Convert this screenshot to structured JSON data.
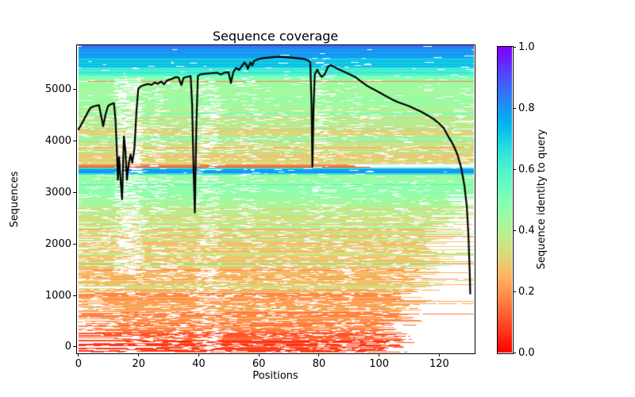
{
  "chart_data": {
    "type": "heatmap+line",
    "title": "Sequence coverage",
    "xlabel": "Positions",
    "ylabel": "Sequences",
    "grid": false,
    "n_positions": 132,
    "n_sequences": 5864,
    "xlim": [
      -0.5,
      131.5
    ],
    "ylim": [
      -110,
      5864
    ],
    "x_ticks": [
      "0",
      "20",
      "40",
      "60",
      "80",
      "100",
      "120"
    ],
    "x_tick_values": [
      0,
      20,
      40,
      60,
      80,
      100,
      120
    ],
    "y_ticks": [
      "0",
      "1000",
      "2000",
      "3000",
      "4000",
      "5000"
    ],
    "y_tick_values": [
      0,
      1000,
      2000,
      3000,
      4000,
      5000
    ],
    "line_color": "#000000",
    "line_width": 2.2,
    "line_meaning": "number of sequences covering each alignment position",
    "coverage_line": {
      "points": [
        [
          0,
          4230
        ],
        [
          1,
          4330
        ],
        [
          2,
          4440
        ],
        [
          3,
          4550
        ],
        [
          4,
          4650
        ],
        [
          5,
          4675
        ],
        [
          6,
          4690
        ],
        [
          6.8,
          4700
        ],
        [
          7.3,
          4560
        ],
        [
          8.2,
          4290
        ],
        [
          9,
          4520
        ],
        [
          9.8,
          4680
        ],
        [
          10.5,
          4710
        ],
        [
          11.8,
          4740
        ],
        [
          12.3,
          4420
        ],
        [
          12.8,
          3760
        ],
        [
          13.1,
          3250
        ],
        [
          13.5,
          3690
        ],
        [
          14.1,
          3160
        ],
        [
          14.5,
          2870
        ],
        [
          15.1,
          4090
        ],
        [
          15.6,
          3820
        ],
        [
          16.1,
          3250
        ],
        [
          16.7,
          3560
        ],
        [
          17.3,
          3740
        ],
        [
          17.9,
          3580
        ],
        [
          18.6,
          3850
        ],
        [
          19.3,
          4600
        ],
        [
          19.9,
          5020
        ],
        [
          20.6,
          5060
        ],
        [
          21.5,
          5085
        ],
        [
          23,
          5110
        ],
        [
          24.3,
          5095
        ],
        [
          25.4,
          5140
        ],
        [
          26.4,
          5115
        ],
        [
          27.5,
          5160
        ],
        [
          28.4,
          5105
        ],
        [
          29.5,
          5180
        ],
        [
          31,
          5210
        ],
        [
          32.4,
          5245
        ],
        [
          33.3,
          5235
        ],
        [
          34.2,
          5090
        ],
        [
          35,
          5235
        ],
        [
          36.2,
          5250
        ],
        [
          37.3,
          5265
        ],
        [
          37.8,
          4700
        ],
        [
          38.3,
          3400
        ],
        [
          38.7,
          2610
        ],
        [
          39.2,
          4300
        ],
        [
          39.7,
          5265
        ],
        [
          40.5,
          5300
        ],
        [
          42,
          5310
        ],
        [
          44,
          5320
        ],
        [
          46,
          5330
        ],
        [
          47.4,
          5295
        ],
        [
          48.4,
          5330
        ],
        [
          49.9,
          5340
        ],
        [
          50.7,
          5130
        ],
        [
          51.5,
          5345
        ],
        [
          52.4,
          5420
        ],
        [
          53.4,
          5385
        ],
        [
          54.4,
          5465
        ],
        [
          55.2,
          5530
        ],
        [
          55.9,
          5480
        ],
        [
          56.3,
          5405
        ],
        [
          57.2,
          5530
        ],
        [
          57.8,
          5470
        ],
        [
          58.3,
          5555
        ],
        [
          59.5,
          5590
        ],
        [
          61,
          5610
        ],
        [
          63,
          5622
        ],
        [
          65,
          5633
        ],
        [
          67,
          5640
        ],
        [
          69,
          5632
        ],
        [
          71,
          5622
        ],
        [
          73,
          5612
        ],
        [
          75,
          5598
        ],
        [
          76.3,
          5572
        ],
        [
          77.1,
          5535
        ],
        [
          77.5,
          4700
        ],
        [
          77.8,
          3505
        ],
        [
          78.2,
          4700
        ],
        [
          78.6,
          5300
        ],
        [
          79.4,
          5390
        ],
        [
          80.1,
          5310
        ],
        [
          80.9,
          5250
        ],
        [
          81.9,
          5300
        ],
        [
          83,
          5450
        ],
        [
          84,
          5480
        ],
        [
          85,
          5445
        ],
        [
          86.4,
          5400
        ],
        [
          88,
          5360
        ],
        [
          90,
          5305
        ],
        [
          92,
          5248
        ],
        [
          94,
          5160
        ],
        [
          96,
          5075
        ],
        [
          98,
          5012
        ],
        [
          100,
          4950
        ],
        [
          102,
          4885
        ],
        [
          104,
          4820
        ],
        [
          106,
          4765
        ],
        [
          108,
          4722
        ],
        [
          110,
          4680
        ],
        [
          112,
          4625
        ],
        [
          114,
          4570
        ],
        [
          116,
          4505
        ],
        [
          118,
          4435
        ],
        [
          120,
          4340
        ],
        [
          121.5,
          4252
        ],
        [
          123,
          4090
        ],
        [
          124.5,
          3945
        ],
        [
          126,
          3745
        ],
        [
          127.3,
          3480
        ],
        [
          128.4,
          3120
        ],
        [
          129.2,
          2700
        ],
        [
          129.7,
          2150
        ],
        [
          130.1,
          1500
        ],
        [
          130.3,
          1035
        ]
      ]
    },
    "colorbar": {
      "label": "Sequence identity to query",
      "ticks": [
        "0.0",
        "0.2",
        "0.4",
        "0.6",
        "0.8",
        "1.0"
      ],
      "tick_values": [
        0.0,
        0.2,
        0.4,
        0.6,
        0.8,
        1.0
      ],
      "cmap": "rainbow_r",
      "stops": [
        {
          "v": 0.0,
          "color": "#ff0000"
        },
        {
          "v": 0.1,
          "color": "#ff4f28"
        },
        {
          "v": 0.2,
          "color": "#ff964f"
        },
        {
          "v": 0.3,
          "color": "#e6ce74"
        },
        {
          "v": 0.4,
          "color": "#b2f296"
        },
        {
          "v": 0.5,
          "color": "#7fffb4"
        },
        {
          "v": 0.6,
          "color": "#4cf2ce"
        },
        {
          "v": 0.7,
          "color": "#19cee3"
        },
        {
          "v": 0.8,
          "color": "#1996f2"
        },
        {
          "v": 0.9,
          "color": "#4c4ffc"
        },
        {
          "v": 1.0,
          "color": "#7f00ff"
        }
      ]
    },
    "heatmap": {
      "description": "MSA rows sorted by identity; white = no coverage",
      "seed": 7,
      "identity_bands": [
        {
          "from": -110,
          "to": 110,
          "id": 0.07,
          "jit": 0.05,
          "outliers": [
            [
              0.1,
              0.15,
              0.22
            ]
          ]
        },
        {
          "from": 110,
          "to": 320,
          "id": 0.13,
          "jit": 0.05,
          "outliers": [
            [
              0.08,
              0.22,
              0.3
            ]
          ]
        },
        {
          "from": 320,
          "to": 700,
          "id": 0.17,
          "jit": 0.06,
          "outliers": [
            [
              0.08,
              0.26,
              0.34
            ]
          ]
        },
        {
          "from": 700,
          "to": 1150,
          "id": 0.21,
          "jit": 0.06,
          "outliers": [
            [
              0.1,
              0.28,
              0.38
            ]
          ]
        },
        {
          "from": 1150,
          "to": 1700,
          "id": 0.25,
          "jit": 0.07,
          "outliers": [
            [
              0.1,
              0.33,
              0.42
            ]
          ]
        },
        {
          "from": 1700,
          "to": 2300,
          "id": 0.29,
          "jit": 0.07,
          "outliers": [
            [
              0.12,
              0.38,
              0.46
            ]
          ]
        },
        {
          "from": 2300,
          "to": 2870,
          "id": 0.35,
          "jit": 0.07,
          "outliers": [
            [
              0.12,
              0.42,
              0.5
            ]
          ]
        },
        {
          "from": 2870,
          "to": 3140,
          "id": 0.46,
          "jit": 0.02,
          "outliers": [
            [
              0.05,
              0.52,
              0.62
            ]
          ]
        },
        {
          "from": 3140,
          "to": 3165,
          "id": 0.6,
          "jit": 0.02,
          "solid": true
        },
        {
          "from": 3165,
          "to": 3355,
          "id": 0.46,
          "jit": 0.02,
          "outliers": [
            [
              0.05,
              0.52,
              0.62
            ]
          ]
        },
        {
          "from": 3355,
          "to": 3385,
          "id": 0.64,
          "jit": 0.03,
          "solid": true
        },
        {
          "from": 3385,
          "to": 3460,
          "id": 0.79,
          "jit": 0.03,
          "solid": true
        },
        {
          "from": 3460,
          "to": 3485,
          "id": 0.66,
          "jit": 0.04,
          "solid": true
        },
        {
          "from": 3485,
          "to": 3505,
          "id": 0.07,
          "jit": 0.03,
          "solid": true,
          "xe": 97
        },
        {
          "from": 3505,
          "to": 3545,
          "id": 0.16,
          "jit": 0.04,
          "solid": true,
          "xe": 92
        },
        {
          "from": 3545,
          "to": 4000,
          "id": 0.31,
          "jit": 0.07,
          "outliers": [
            [
              0.1,
              0.42,
              0.5
            ],
            [
              0.05,
              0.18,
              0.24
            ]
          ]
        },
        {
          "from": 4000,
          "to": 4620,
          "id": 0.38,
          "jit": 0.06,
          "outliers": [
            [
              0.08,
              0.46,
              0.55
            ],
            [
              0.06,
              0.2,
              0.28
            ]
          ]
        },
        {
          "from": 4620,
          "to": 5155,
          "id": 0.44,
          "jit": 0.04,
          "outliers": [
            [
              0.05,
              0.52,
              0.62
            ],
            [
              0.03,
              0.25,
              0.32
            ]
          ]
        },
        {
          "from": 5155,
          "to": 5175,
          "id": 0.18,
          "jit": 0.02,
          "solid": true
        },
        {
          "from": 5175,
          "to": 5280,
          "id": 0.5,
          "jit": 0.05
        },
        {
          "from": 5280,
          "to": 5430,
          "id": 0.62,
          "jit": 0.04,
          "solid": true
        },
        {
          "from": 5430,
          "to": 5620,
          "id": 0.73,
          "jit": 0.03,
          "solid": true
        },
        {
          "from": 5620,
          "to": 5800,
          "id": 0.8,
          "jit": 0.03,
          "solid": true
        },
        {
          "from": 5800,
          "to": 5864,
          "id": 0.87,
          "jit": 0.04,
          "solid": true
        }
      ],
      "gap_zones": [
        {
          "p0": 11.5,
          "p1": 20.0,
          "extra": 0.45,
          "v0": 1400,
          "v1": 5230
        },
        {
          "p0": 23.0,
          "p1": 28.0,
          "extra": 0.18,
          "v0": 1400,
          "v1": 5230
        },
        {
          "p0": 38.0,
          "p1": 46.0,
          "extra": 0.25,
          "v0": -110,
          "v1": 5230
        },
        {
          "p0": 53.0,
          "p1": 58.0,
          "extra": 0.12,
          "v0": 2000,
          "v1": 5230
        },
        {
          "p0": 77.5,
          "p1": 82.0,
          "extra": 0.22,
          "v0": 2500,
          "v1": 5620
        },
        {
          "p0": 86.0,
          "p1": 91.0,
          "extra": 0.1,
          "v0": -110,
          "v1": 2500
        }
      ]
    },
    "colors": {
      "background": "#ffffff",
      "spine": "#000000",
      "tick_label": "#000000",
      "coverage_line": "#000000"
    }
  }
}
